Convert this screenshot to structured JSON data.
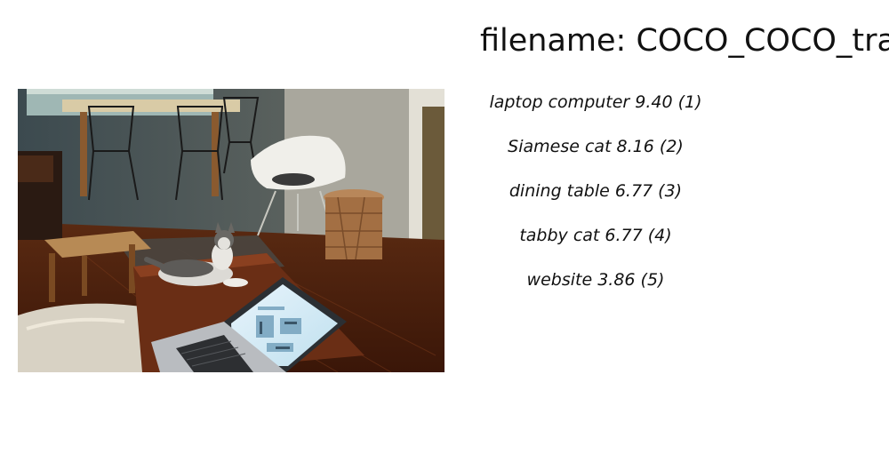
{
  "header": {
    "title": "filename: COCO_COCO_train"
  },
  "predictions": [
    {
      "text": "laptop computer  9.40 (1)"
    },
    {
      "text": "Siamese cat  8.16 (2)"
    },
    {
      "text": "dining table  6.77 (3)"
    },
    {
      "text": "tabby cat  6.77 (4)"
    },
    {
      "text": "website  3.86 (5)"
    }
  ]
}
